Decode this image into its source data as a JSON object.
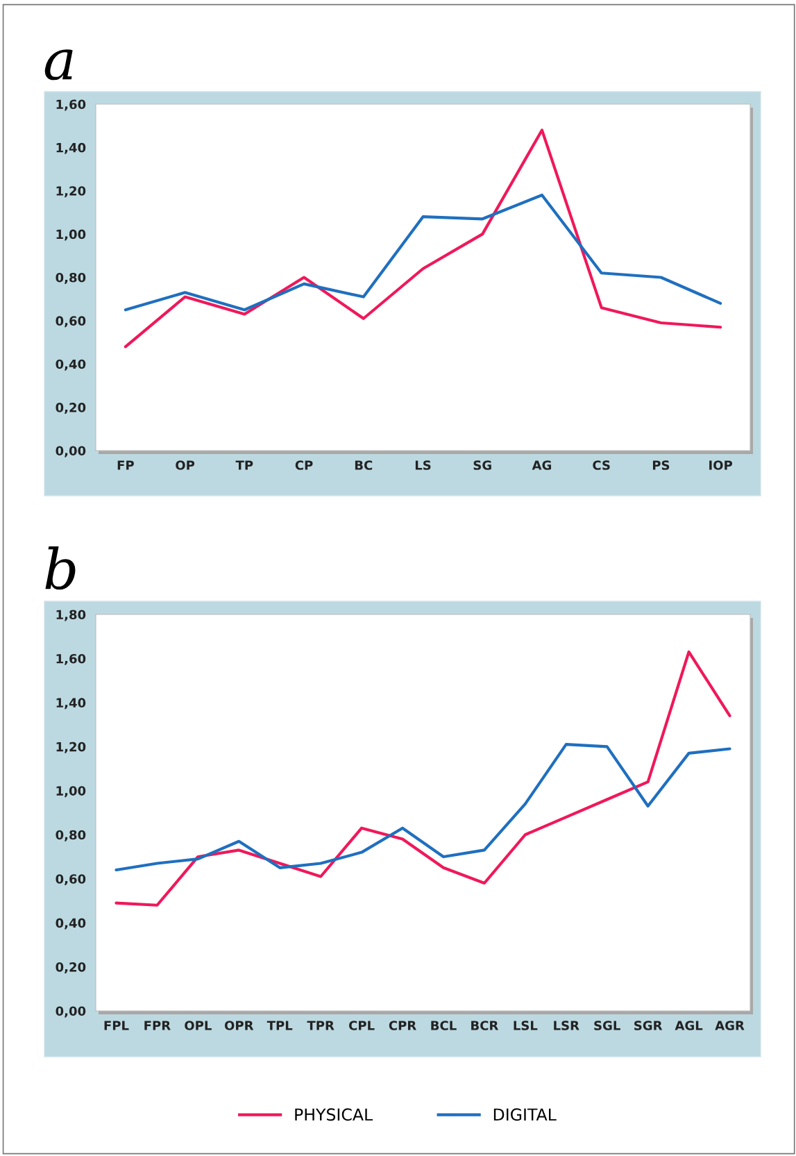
{
  "chart_data": [
    {
      "type": "line",
      "title": "a",
      "categories": [
        "FP",
        "OP",
        "TP",
        "CP",
        "BC",
        "LS",
        "SG",
        "AG",
        "CS",
        "PS",
        "IOP"
      ],
      "series": [
        {
          "color": "#f0185a",
          "values": [
            0.48,
            0.71,
            0.63,
            0.8,
            0.61,
            0.84,
            1.0,
            1.48,
            0.66,
            0.59,
            0.57
          ]
        },
        {
          "color": "#1f6fbf",
          "values": [
            0.65,
            0.73,
            0.65,
            0.77,
            0.71,
            1.08,
            1.07,
            1.18,
            0.82,
            0.8,
            0.68
          ]
        }
      ],
      "ylim": [
        0,
        1.6
      ],
      "yticks": [
        {
          "value": 0,
          "label": "0,00"
        },
        {
          "value": 0.2,
          "label": "0,20"
        },
        {
          "value": 0.4,
          "label": "0,40"
        },
        {
          "value": 0.6,
          "label": "0,60"
        },
        {
          "value": 0.8,
          "label": "0,80"
        },
        {
          "value": 1.0,
          "label": "1,00"
        },
        {
          "value": 1.2,
          "label": "1,20"
        },
        {
          "value": 1.4,
          "label": "1,40"
        },
        {
          "value": 1.6,
          "label": "1,60"
        }
      ]
    },
    {
      "type": "line",
      "title": "b",
      "categories": [
        "FPL",
        "FPR",
        "OPL",
        "OPR",
        "TPL",
        "TPR",
        "CPL",
        "CPR",
        "BCL",
        "BCR",
        "LSL",
        "LSR",
        "SGL",
        "SGR",
        "AGL",
        "AGR"
      ],
      "series": [
        {
          "name": "PHYSICAL",
          "color": "#f0185a",
          "values": [
            0.49,
            0.48,
            0.7,
            0.73,
            0.67,
            0.61,
            0.83,
            0.78,
            0.65,
            0.58,
            0.8,
            0.88,
            0.96,
            1.04,
            1.63,
            1.34
          ]
        },
        {
          "name": "DIGITAL",
          "color": "#1f6fbf",
          "values": [
            0.64,
            0.67,
            0.69,
            0.77,
            0.65,
            0.67,
            0.72,
            0.83,
            0.7,
            0.73,
            0.94,
            1.21,
            1.2,
            0.93,
            1.17,
            1.19
          ]
        }
      ],
      "ylim": [
        0,
        1.8
      ],
      "yticks": [
        {
          "value": 0,
          "label": "0,00"
        },
        {
          "value": 0.2,
          "label": "0,20"
        },
        {
          "value": 0.4,
          "label": "0,40"
        },
        {
          "value": 0.6,
          "label": "0,60"
        },
        {
          "value": 0.8,
          "label": "0,80"
        },
        {
          "value": 1.0,
          "label": "1,00"
        },
        {
          "value": 1.2,
          "label": "1,20"
        },
        {
          "value": 1.4,
          "label": "1,40"
        },
        {
          "value": 1.6,
          "label": "1,60"
        },
        {
          "value": 1.8,
          "label": "1,80"
        }
      ],
      "legend": "bottom"
    }
  ]
}
